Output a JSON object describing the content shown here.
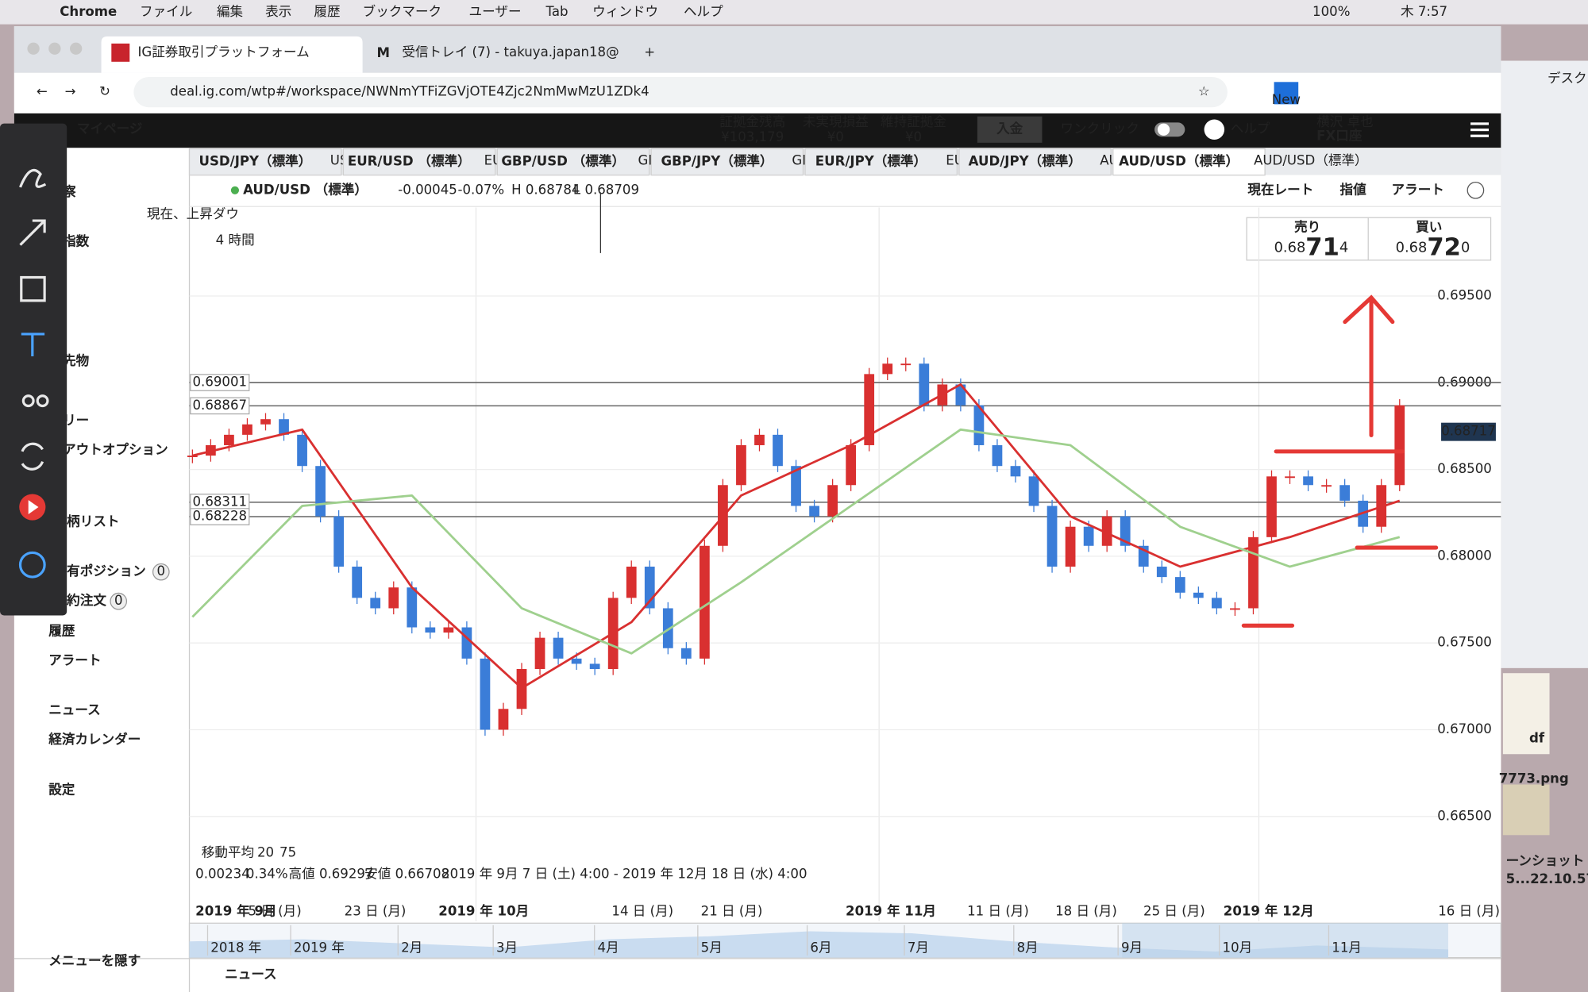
{
  "menubar": {
    "app": "Chrome",
    "menus": [
      "ファイル",
      "編集",
      "表示",
      "履歴",
      "ブックマーク",
      "ユーザー",
      "Tab",
      "ウィンドウ",
      "ヘルプ"
    ],
    "battery": "100%",
    "clock": "木 7:57"
  },
  "browser": {
    "tabs": [
      "IG証券取引プラットフォーム",
      "受信トレイ (7) - takuya.japan18@"
    ],
    "url": "deal.ig.com/wtp#/workspace/NWNmYTFiZGVjOTE4Zjc2NmMwMzU1ZDk4",
    "extension_badge": "New"
  },
  "header": {
    "nav": "マイページ",
    "stats": [
      {
        "label": "証拠金残高",
        "value": "¥103,179"
      },
      {
        "label": "未実現損益",
        "value": "¥0"
      },
      {
        "label": "維持証拠金",
        "value": "¥0"
      }
    ],
    "deposit": "入金",
    "one_click": "ワンクリック",
    "help": "ヘルプ",
    "user": "横沢 卓也",
    "account": "FX口座"
  },
  "instrument_tabs": [
    "USD/JPY（標準）",
    "EUR/USD （標準）",
    "GBP/USD （標準）",
    "GBP/JPY（標準）",
    "EUR/JPY（標準）",
    "AUD/JPY（標準）",
    "AUD/USD（標準）"
  ],
  "sidebar": {
    "items": [
      {
        "label": "察"
      },
      {
        "label": "指数"
      },
      {
        "label": "先物"
      },
      {
        "label": "リー"
      },
      {
        "label": "アウトオプション"
      },
      {
        "label": "柄リスト"
      },
      {
        "label": "有ポジション",
        "count": 0
      },
      {
        "label": "約注文",
        "count": 0
      },
      {
        "label": "履歴"
      },
      {
        "label": "アラート"
      },
      {
        "label": "ニュース"
      },
      {
        "label": "経済カレンダー"
      },
      {
        "label": "設定"
      },
      {
        "label": "メニューを隠す"
      }
    ]
  },
  "chart_data": {
    "type": "candlestick",
    "title": "AUD/USD （標準）",
    "change": "-0.00045",
    "change_pct": "-0.07%",
    "high": "H 0.68784",
    "low": "L 0.68709",
    "timeframe": "4 時間",
    "toolbar": [
      "現在レート",
      "指値",
      "アラート"
    ],
    "sell": {
      "label": "売り",
      "price": [
        "0.68",
        "71",
        "4"
      ]
    },
    "buy": {
      "label": "買い",
      "price": [
        "0.68",
        "72",
        "0"
      ]
    },
    "annotation": "現在、上昇ダウ",
    "close": [
      0.6858,
      0.6864,
      0.687,
      0.6876,
      0.6879,
      0.687,
      0.6852,
      0.6823,
      0.6794,
      0.6776,
      0.677,
      0.6782,
      0.6759,
      0.6756,
      0.6759,
      0.6741,
      0.67,
      0.6712,
      0.6735,
      0.6753,
      0.6741,
      0.6738,
      0.6735,
      0.6776,
      0.6794,
      0.677,
      0.6747,
      0.6741,
      0.6806,
      0.6841,
      0.6864,
      0.687,
      0.6852,
      0.6829,
      0.6823,
      0.6841,
      0.6864,
      0.6905,
      0.6911,
      0.6911,
      0.6887,
      0.6899,
      0.6887,
      0.6864,
      0.6852,
      0.6846,
      0.6829,
      0.6794,
      0.6817,
      0.6806,
      0.6823,
      0.6806,
      0.6794,
      0.6788,
      0.6779,
      0.6776,
      0.677,
      0.677,
      0.6811,
      0.6846,
      0.6846,
      0.6841,
      0.6841,
      0.6832,
      0.6817,
      0.6841,
      0.6887
    ],
    "series": [
      {
        "name": "20",
        "color": "#d93030",
        "values": [
          0.6858,
          0.6873,
          0.6782,
          0.6724,
          0.6762,
          0.6835,
          0.6864,
          0.6899,
          0.6823,
          0.6794,
          0.6811,
          0.6832
        ]
      },
      {
        "name": "75",
        "color": "#9fd08e",
        "values": [
          0.6765,
          0.6829,
          0.6835,
          0.677,
          0.6744,
          0.6785,
          0.6829,
          0.6873,
          0.6864,
          0.6817,
          0.6794,
          0.6811
        ]
      }
    ],
    "up_color": "#d93030",
    "down_color": "#3b7dd8",
    "ylim": [
      0.6613,
      0.7001
    ],
    "yticks": [
      {
        "value": 0.695,
        "label": "0.69500"
      },
      {
        "value": 0.69,
        "label": "0.69000"
      },
      {
        "value": 0.685,
        "label": "0.68500"
      },
      {
        "value": 0.68,
        "label": "0.68000"
      },
      {
        "value": 0.675,
        "label": "0.67500"
      },
      {
        "value": 0.67,
        "label": "0.67000"
      },
      {
        "value": 0.665,
        "label": "0.66500"
      }
    ],
    "price_lines": [
      {
        "value": 0.69001,
        "label": "0.69001"
      },
      {
        "value": 0.68867,
        "label": "0.68867"
      },
      {
        "value": 0.68311,
        "label": "0.68311"
      },
      {
        "value": 0.68228,
        "label": "0.68228"
      }
    ],
    "current_price": {
      "value": 0.68717,
      "label": "0.68717"
    },
    "indicator_label": "移動平均",
    "stats": [
      "0.00234",
      "0.34%",
      "高値 0.69297",
      "安値 0.66708",
      "2019 年 9月 7 日 (土) 4:00 - 2019 年 12月 18 日 (水) 4:00"
    ],
    "x_labels": [
      "2019 年 9月",
      "5 日 (月)",
      "23 日 (月)",
      "2019 年 10月",
      "14 日 (月)",
      "21 日 (月)",
      "2019 年 11月",
      "11 日 (月)",
      "18 日 (月)",
      "25 日 (月)",
      "2019 年 12月",
      "16 日 (月)"
    ],
    "navigator_labels": [
      "2018 年",
      "2019 年",
      "2月",
      "3月",
      "4月",
      "5月",
      "6月",
      "7月",
      "8月",
      "9月",
      "10月",
      "11月"
    ]
  },
  "footer": {
    "news": "ニュース"
  },
  "desktop": {
    "labels": [
      "デスク",
      "df",
      "7773.png",
      "ーンショット",
      "5...22.10.57"
    ]
  }
}
